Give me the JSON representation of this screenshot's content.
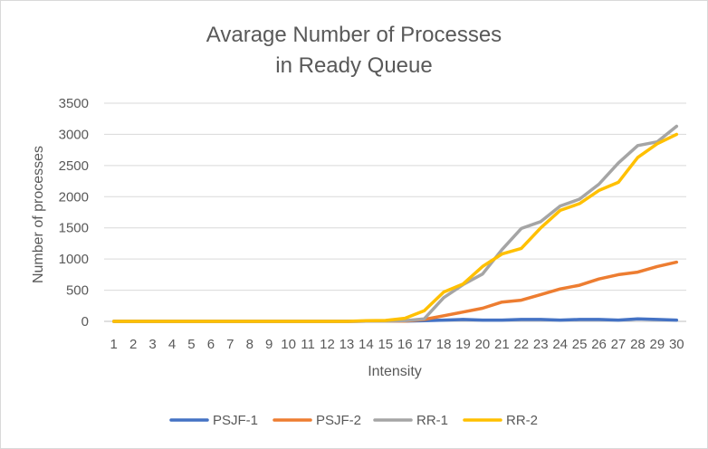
{
  "chart_data": {
    "type": "line",
    "title_lines": [
      "Avarage Number of Processes",
      "in Ready Queue"
    ],
    "xlabel": "Intensity",
    "ylabel": "Number of processes",
    "categories": [
      "1",
      "2",
      "3",
      "4",
      "5",
      "6",
      "7",
      "8",
      "9",
      "10",
      "11",
      "12",
      "13",
      "14",
      "15",
      "16",
      "17",
      "18",
      "19",
      "20",
      "21",
      "22",
      "23",
      "24",
      "25",
      "26",
      "27",
      "28",
      "29",
      "30"
    ],
    "ylim": [
      0,
      3500
    ],
    "yticks": [
      0,
      500,
      1000,
      1500,
      2000,
      2500,
      3000,
      3500
    ],
    "grid": true,
    "legend_position": "bottom",
    "series": [
      {
        "name": "PSJF-1",
        "color": "#4472C4",
        "values": [
          0,
          0,
          0,
          0,
          0,
          0,
          0,
          0,
          0,
          0,
          0,
          0,
          0,
          5,
          5,
          5,
          10,
          20,
          30,
          20,
          20,
          30,
          30,
          20,
          30,
          30,
          20,
          40,
          30,
          20
        ]
      },
      {
        "name": "PSJF-2",
        "color": "#ED7D31",
        "values": [
          0,
          0,
          0,
          0,
          0,
          0,
          0,
          0,
          0,
          0,
          0,
          0,
          0,
          5,
          5,
          5,
          30,
          90,
          150,
          210,
          310,
          340,
          430,
          520,
          580,
          680,
          750,
          790,
          880,
          950
        ]
      },
      {
        "name": "RR-1",
        "color": "#A5A5A5",
        "values": [
          0,
          0,
          0,
          0,
          0,
          0,
          0,
          0,
          0,
          0,
          0,
          0,
          0,
          5,
          5,
          10,
          40,
          380,
          590,
          760,
          1150,
          1490,
          1600,
          1850,
          1960,
          2200,
          2540,
          2820,
          2880,
          3130
        ]
      },
      {
        "name": "RR-2",
        "color": "#FFC000",
        "values": [
          0,
          0,
          0,
          0,
          0,
          0,
          0,
          0,
          0,
          0,
          0,
          0,
          0,
          10,
          15,
          50,
          170,
          470,
          600,
          880,
          1080,
          1170,
          1500,
          1780,
          1890,
          2100,
          2230,
          2630,
          2850,
          3000
        ]
      }
    ]
  }
}
